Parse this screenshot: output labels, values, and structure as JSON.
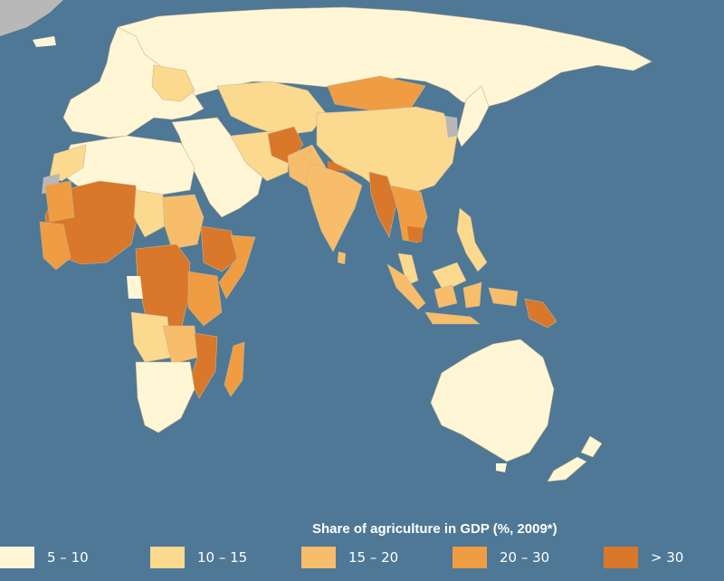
{
  "colors": {
    "ocean": "#4e7896",
    "no_data": "#b8b8b8",
    "class_5_10": "#fff6d6",
    "class_10_15": "#fbd98f",
    "class_15_20": "#f7bd6b",
    "class_20_30": "#ef9c42",
    "class_gt30": "#d9772a",
    "border": "#c9b48a"
  },
  "legend": {
    "title": "Share of agriculture in GDP (%, 2009*)",
    "items": [
      {
        "label": "5 – 10",
        "color": "#fff6d6"
      },
      {
        "label": "10 – 15",
        "color": "#fbd98f"
      },
      {
        "label": "15 – 20",
        "color": "#f7bd6b"
      },
      {
        "label": "20 – 30",
        "color": "#ef9c42"
      },
      {
        "label": "> 30",
        "color": "#d9772a"
      }
    ]
  }
}
